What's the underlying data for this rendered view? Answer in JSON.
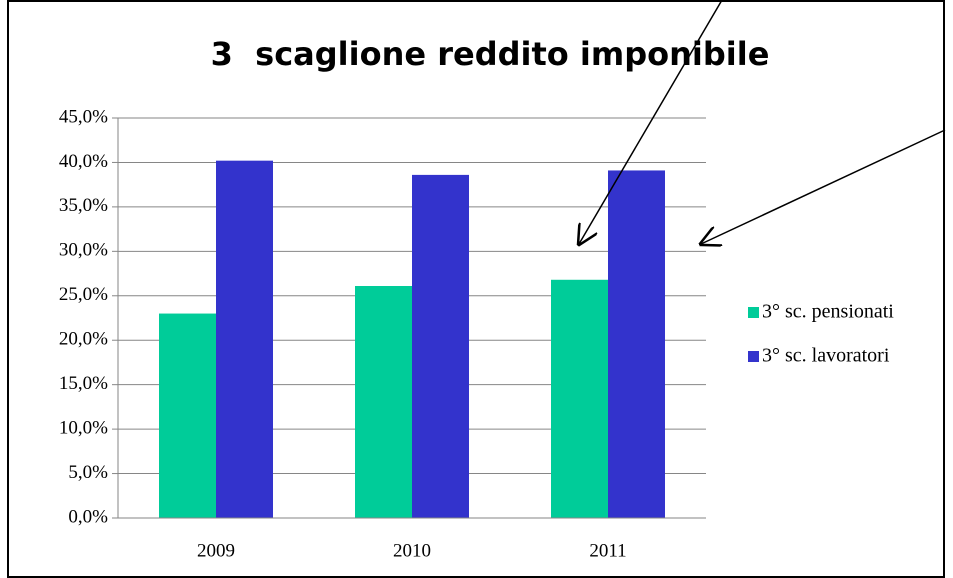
{
  "chart_data": {
    "type": "bar",
    "title": "3  scaglione reddito imponibile",
    "categories": [
      "2009",
      "2010",
      "2011"
    ],
    "series": [
      {
        "name": "3° sc. pensionati",
        "color": "#00cc99",
        "values": [
          23.0,
          26.1,
          26.8
        ]
      },
      {
        "name": "3° sc. lavoratori",
        "color": "#3333cc",
        "values": [
          40.2,
          38.6,
          39.1
        ]
      }
    ],
    "ylim": [
      0,
      45
    ],
    "yticks": [
      {
        "value": 0,
        "label": "0,0%"
      },
      {
        "value": 5,
        "label": "5,0%"
      },
      {
        "value": 10,
        "label": "10,0%"
      },
      {
        "value": 15,
        "label": "15,0%"
      },
      {
        "value": 20,
        "label": "20,0%"
      },
      {
        "value": 25,
        "label": "25,0%"
      },
      {
        "value": 30,
        "label": "30,0%"
      },
      {
        "value": 35,
        "label": "35,0%"
      },
      {
        "value": 40,
        "label": "40,0%"
      },
      {
        "value": 45,
        "label": "45,0%"
      }
    ],
    "grid": true,
    "legend": "right"
  }
}
